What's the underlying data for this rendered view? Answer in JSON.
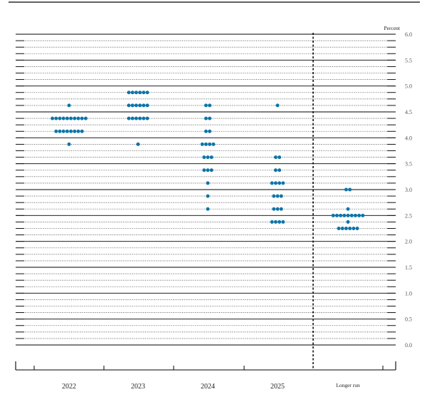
{
  "chart_data": {
    "type": "scatter",
    "unit_label": "Percent",
    "categories": [
      "2022",
      "2023",
      "2024",
      "2025",
      "Longer run"
    ],
    "ylim": [
      0.0,
      6.0
    ],
    "yticks": [
      "6.0",
      "5.5",
      "5.0",
      "4.5",
      "4.0",
      "3.5",
      "3.0",
      "2.5",
      "2.0",
      "1.5",
      "1.0",
      "0.5",
      "0.0"
    ],
    "grid": "dotted every 0.125, solid every 0.5",
    "marker_color": "#0e74a8",
    "points": [
      {
        "category": "2022",
        "groups": [
          {
            "y": 4.625,
            "count": 1
          },
          {
            "y": 4.375,
            "count": 10
          },
          {
            "y": 4.125,
            "count": 8
          },
          {
            "y": 3.875,
            "count": 1
          }
        ]
      },
      {
        "category": "2023",
        "groups": [
          {
            "y": 4.875,
            "count": 6
          },
          {
            "y": 4.625,
            "count": 6
          },
          {
            "y": 4.375,
            "count": 6
          },
          {
            "y": 3.875,
            "count": 1
          }
        ]
      },
      {
        "category": "2024",
        "groups": [
          {
            "y": 4.625,
            "count": 2
          },
          {
            "y": 4.375,
            "count": 2
          },
          {
            "y": 4.125,
            "count": 2
          },
          {
            "y": 3.875,
            "count": 4
          },
          {
            "y": 3.625,
            "count": 3
          },
          {
            "y": 3.375,
            "count": 3
          },
          {
            "y": 3.125,
            "count": 1
          },
          {
            "y": 2.875,
            "count": 1
          },
          {
            "y": 2.625,
            "count": 1
          }
        ]
      },
      {
        "category": "2025",
        "groups": [
          {
            "y": 4.625,
            "count": 1
          },
          {
            "y": 3.625,
            "count": 2
          },
          {
            "y": 3.375,
            "count": 2
          },
          {
            "y": 3.125,
            "count": 4
          },
          {
            "y": 2.875,
            "count": 3
          },
          {
            "y": 2.625,
            "count": 3
          },
          {
            "y": 2.375,
            "count": 4
          }
        ]
      },
      {
        "category": "Longer run",
        "groups": [
          {
            "y": 3.0,
            "count": 2
          },
          {
            "y": 2.625,
            "count": 1
          },
          {
            "y": 2.5,
            "count": 9
          },
          {
            "y": 2.375,
            "count": 1
          },
          {
            "y": 2.25,
            "count": 6
          }
        ]
      }
    ]
  }
}
